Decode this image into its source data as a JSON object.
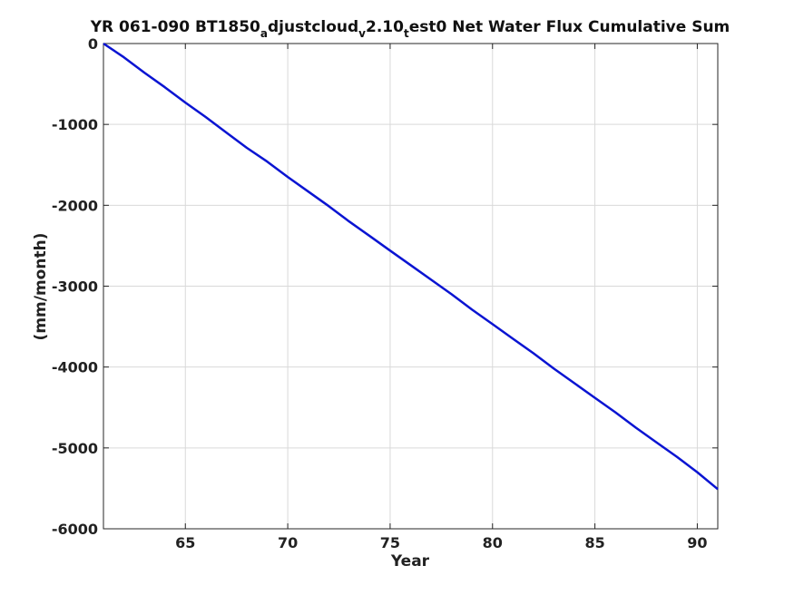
{
  "chart_data": {
    "type": "line",
    "title": {
      "prefix": "YR 061-090 BT1850",
      "sub1": "a",
      "mid1": "djustcloud",
      "sub2": "v",
      "mid2": "2.10",
      "sub3": "t",
      "suffix": "est0 Net Water Flux Cumulative Sum"
    },
    "xlabel": "Year",
    "ylabel": "(mm/month)",
    "xlim": [
      61,
      91
    ],
    "ylim": [
      -6000,
      0
    ],
    "xticks": [
      65,
      70,
      75,
      80,
      85,
      90
    ],
    "yticks": [
      0,
      -1000,
      -2000,
      -3000,
      -4000,
      -5000,
      -6000
    ],
    "grid": true,
    "series": [
      {
        "color": "#0a14d2",
        "x": [
          61,
          62,
          63,
          64,
          65,
          66,
          67,
          68,
          69,
          70,
          71,
          72,
          73,
          74,
          75,
          76,
          77,
          78,
          79,
          80,
          81,
          82,
          83,
          84,
          85,
          86,
          87,
          88,
          89,
          90,
          91
        ],
        "y": [
          0,
          -170,
          -360,
          -540,
          -730,
          -910,
          -1100,
          -1290,
          -1460,
          -1650,
          -1830,
          -2010,
          -2200,
          -2380,
          -2560,
          -2740,
          -2920,
          -3100,
          -3290,
          -3470,
          -3650,
          -3830,
          -4020,
          -4200,
          -4380,
          -4560,
          -4750,
          -4930,
          -5110,
          -5300,
          -5510
        ]
      }
    ]
  }
}
